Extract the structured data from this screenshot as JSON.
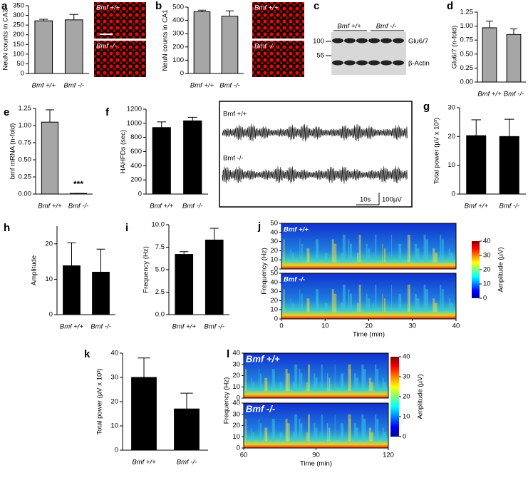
{
  "chart_data": [
    {
      "type": "bar",
      "panel": "a",
      "ylabel": "NeuN counts in CA3",
      "categories": [
        "Bmf +/+",
        "Bmf -/-"
      ],
      "values": [
        272,
        277
      ],
      "errors": [
        8,
        28
      ],
      "color": "#a6a6a6",
      "ylim": [
        0,
        350
      ],
      "yticks": [
        0,
        50,
        100,
        150,
        200,
        250,
        300,
        350
      ],
      "image_labels": [
        "Bmf +/+",
        "Bmf -/-"
      ]
    },
    {
      "type": "bar",
      "panel": "b",
      "ylabel": "NeuN counts in CA1",
      "categories": [
        "Bmf +/+",
        "Bmf -/-"
      ],
      "values": [
        465,
        432
      ],
      "errors": [
        12,
        40
      ],
      "color": "#a6a6a6",
      "ylim": [
        0,
        500
      ],
      "yticks": [
        0,
        100,
        200,
        300,
        400,
        500
      ],
      "image_labels": [
        "Bmf +/+",
        "Bmf -/-"
      ]
    },
    {
      "type": "bar",
      "panel": "d",
      "ylabel": "Glu6/7 (n-fold)",
      "categories": [
        "Bmf +/+",
        "Bmf -/-"
      ],
      "values": [
        0.97,
        0.85
      ],
      "errors": [
        0.12,
        0.1
      ],
      "color": "#a6a6a6",
      "ylim": [
        0,
        1.25
      ],
      "yticks": [
        {
          "value": 0,
          "label": "0.00"
        },
        {
          "value": 0.25,
          "label": "0.25"
        },
        {
          "value": 0.5,
          "label": "0.50"
        },
        {
          "value": 0.75,
          "label": "0.75"
        },
        {
          "value": 1,
          "label": "1.00"
        },
        {
          "value": 1.25,
          "label": "1.25"
        }
      ]
    },
    {
      "type": "bar",
      "panel": "e",
      "ylabel": "bmf mRNA (n-fold)",
      "categories": [
        "Bmf +/+",
        "Bmf -/-"
      ],
      "values": [
        1.05,
        0.01
      ],
      "errors": [
        0.18,
        0
      ],
      "color": "#a6a6a6",
      "annotation": "***",
      "ylim": [
        0,
        1.25
      ],
      "yticks": [
        {
          "value": 0,
          "label": "0.00"
        },
        {
          "value": 0.25,
          "label": "0.25"
        },
        {
          "value": 0.5,
          "label": "0.50"
        },
        {
          "value": 0.75,
          "label": "0.75"
        },
        {
          "value": 1,
          "label": "1.00"
        },
        {
          "value": 1.25,
          "label": "1.25"
        }
      ]
    },
    {
      "type": "bar",
      "panel": "f",
      "ylabel": "HAHFDs (sec)",
      "categories": [
        "Bmf +/+",
        "Bmf -/-"
      ],
      "values": [
        940,
        1035
      ],
      "errors": [
        80,
        50
      ],
      "color": "#000000",
      "ylim": [
        0,
        1200
      ],
      "yticks": [
        0,
        200,
        400,
        600,
        800,
        1000,
        1200
      ]
    },
    {
      "type": "bar",
      "panel": "g",
      "ylabel": "Total power (µV x 10³)",
      "categories": [
        "Bmf +/+",
        "Bmf -/-"
      ],
      "values": [
        20.3,
        20
      ],
      "errors": [
        5.5,
        6
      ],
      "color": "#000000",
      "ylim": [
        0,
        30
      ],
      "yticks": [
        0,
        10,
        20,
        30
      ]
    },
    {
      "type": "bar",
      "panel": "h",
      "ylabel": "Amplitude",
      "categories": [
        "Bmf +/+",
        "Bmf -/-"
      ],
      "values": [
        13.8,
        12
      ],
      "errors": [
        6.5,
        6.5
      ],
      "color": "#000000",
      "ylim": [
        0,
        25
      ],
      "yticks": [
        0,
        10,
        20
      ]
    },
    {
      "type": "bar",
      "panel": "i",
      "ylabel": "Frequency (Hz)",
      "categories": [
        "Bmf +/+",
        "Bmf -/-"
      ],
      "values": [
        6.7,
        8.3
      ],
      "errors": [
        0.3,
        1.3
      ],
      "color": "#000000",
      "ylim": [
        0,
        10
      ],
      "yticks": [
        {
          "value": 0,
          "label": "0.0"
        },
        {
          "value": 2.5,
          "label": "2.5"
        },
        {
          "value": 5,
          "label": "5.0"
        },
        {
          "value": 7.5,
          "label": "7.5"
        },
        {
          "value": 10,
          "label": "10.0"
        }
      ]
    },
    {
      "type": "spectrogram",
      "panel": "j",
      "ylabel": "Frequency (Hz)",
      "xlabel": "Time (min)",
      "subpanels": [
        "Bmf +/+",
        "Bmf -/-"
      ],
      "xlim": [
        0,
        40
      ],
      "xticks": [
        0,
        10,
        20,
        30,
        40
      ],
      "ylim": [
        0,
        50
      ],
      "yticks": [
        0,
        10,
        20,
        30,
        40,
        50
      ],
      "colorbar_label": "Amplitude (µV)",
      "zlim": [
        0,
        40
      ],
      "zticks": [
        0,
        10,
        20,
        30,
        40
      ]
    },
    {
      "type": "bar",
      "panel": "k",
      "ylabel": "Total power (µV x 10³)",
      "categories": [
        "Bmf +/+",
        "Bmf -/-"
      ],
      "values": [
        30,
        17
      ],
      "errors": [
        8,
        6.5
      ],
      "color": "#000000",
      "ylim": [
        0,
        40
      ],
      "yticks": [
        0,
        10,
        20,
        30,
        40
      ]
    },
    {
      "type": "spectrogram",
      "panel": "l",
      "ylabel": "Frequency (Hz)",
      "xlabel": "Time (min)",
      "subpanels": [
        "Bmf +/+",
        "Bmf -/-"
      ],
      "xlim": [
        60,
        120
      ],
      "xticks": [
        60,
        90,
        120
      ],
      "ylim": [
        0,
        40
      ],
      "yticks": [
        0,
        10,
        20,
        30,
        40
      ],
      "colorbar_label": "Amplitude (µV)",
      "zlim": [
        0,
        40
      ],
      "zticks": [
        0,
        10,
        20,
        30,
        40
      ]
    }
  ],
  "blot": {
    "panel": "c",
    "groups": [
      "Bmf +/+",
      "Bmf -/-"
    ],
    "markers": [
      "100",
      "55"
    ],
    "bands": [
      "Glu6/7",
      "β-Actin"
    ]
  },
  "trace": {
    "labels": [
      "Bmf +/+",
      "Bmf -/-"
    ],
    "scale": [
      "10s",
      "100µV"
    ]
  }
}
